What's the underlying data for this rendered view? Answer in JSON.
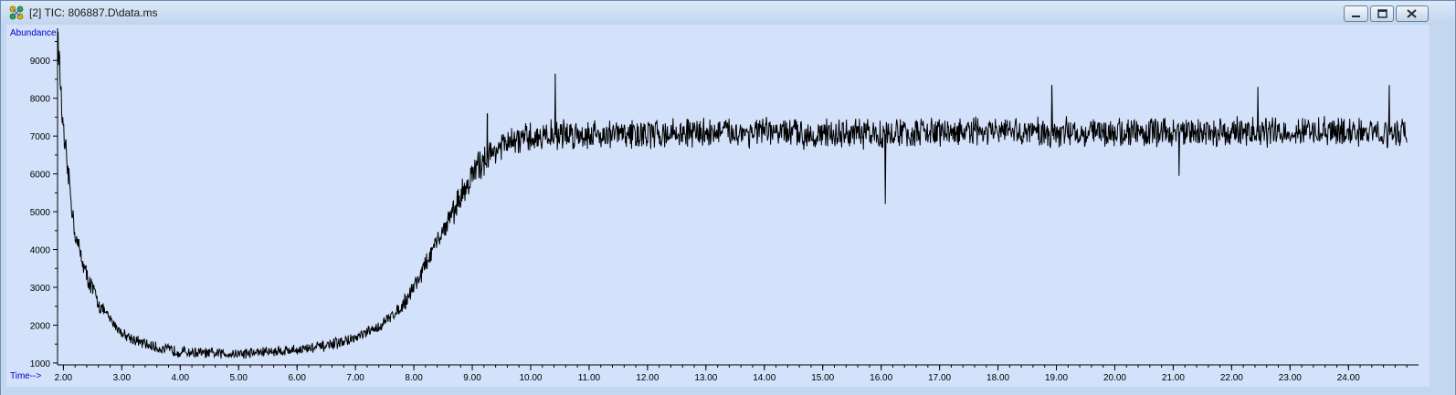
{
  "window": {
    "title": "[2] TIC: 806887.D\\data.ms",
    "icon": "chromatogram-app-icon",
    "controls": [
      "minimize-icon",
      "maximize-icon",
      "close-icon"
    ]
  },
  "colors": {
    "plot_bg": "#d3e2fa",
    "trace": "#000000",
    "axis_label": "#0000cc",
    "tick_text": "#000000"
  },
  "chart_data": {
    "type": "line",
    "ylabel": "Abundance",
    "xlabel": "Time-->",
    "xlim": [
      1.9,
      25.2
    ],
    "ylim": [
      950,
      9850
    ],
    "x_ticks": [
      "2.00",
      "3.00",
      "4.00",
      "5.00",
      "6.00",
      "7.00",
      "8.00",
      "9.00",
      "10.00",
      "11.00",
      "12.00",
      "13.00",
      "14.00",
      "15.00",
      "16.00",
      "17.00",
      "18.00",
      "19.00",
      "20.00",
      "21.00",
      "22.00",
      "23.00",
      "24.00"
    ],
    "y_ticks": [
      "1000",
      "2000",
      "3000",
      "4000",
      "5000",
      "6000",
      "7000",
      "8000",
      "9000"
    ],
    "grid": false,
    "legend": "none",
    "series": [
      {
        "x": [
          1.9,
          2.0,
          2.1,
          2.2,
          2.4,
          2.6,
          2.8,
          3.0,
          3.3,
          3.6,
          4.0,
          4.5,
          5.0,
          5.5,
          6.0,
          6.5,
          7.0,
          7.4,
          7.8,
          8.1,
          8.4,
          8.7,
          8.9,
          9.1,
          9.4,
          9.7,
          10.0,
          10.5,
          11.0,
          12.0,
          13.0,
          14.0,
          15.0,
          16.0,
          17.0,
          18.0,
          19.0,
          20.0,
          21.0,
          22.0,
          23.0,
          24.0,
          25.0
        ],
        "values": [
          9800,
          7000,
          5800,
          4400,
          3300,
          2600,
          2150,
          1800,
          1550,
          1400,
          1300,
          1250,
          1250,
          1300,
          1350,
          1450,
          1650,
          1950,
          2500,
          3300,
          4200,
          5100,
          5700,
          6200,
          6650,
          6850,
          6950,
          7050,
          7050,
          7050,
          7100,
          7100,
          7050,
          7050,
          7100,
          7100,
          7100,
          7100,
          7100,
          7100,
          7100,
          7100,
          7100
        ]
      }
    ],
    "spikes": [
      {
        "x": 2.06,
        "y": 6300
      },
      {
        "x": 9.26,
        "y": 7600
      },
      {
        "x": 10.42,
        "y": 8650
      },
      {
        "x": 16.07,
        "y": 5200
      },
      {
        "x": 18.92,
        "y": 8350
      },
      {
        "x": 21.1,
        "y": 5950
      },
      {
        "x": 22.45,
        "y": 8300
      },
      {
        "x": 24.7,
        "y": 8350
      }
    ]
  }
}
